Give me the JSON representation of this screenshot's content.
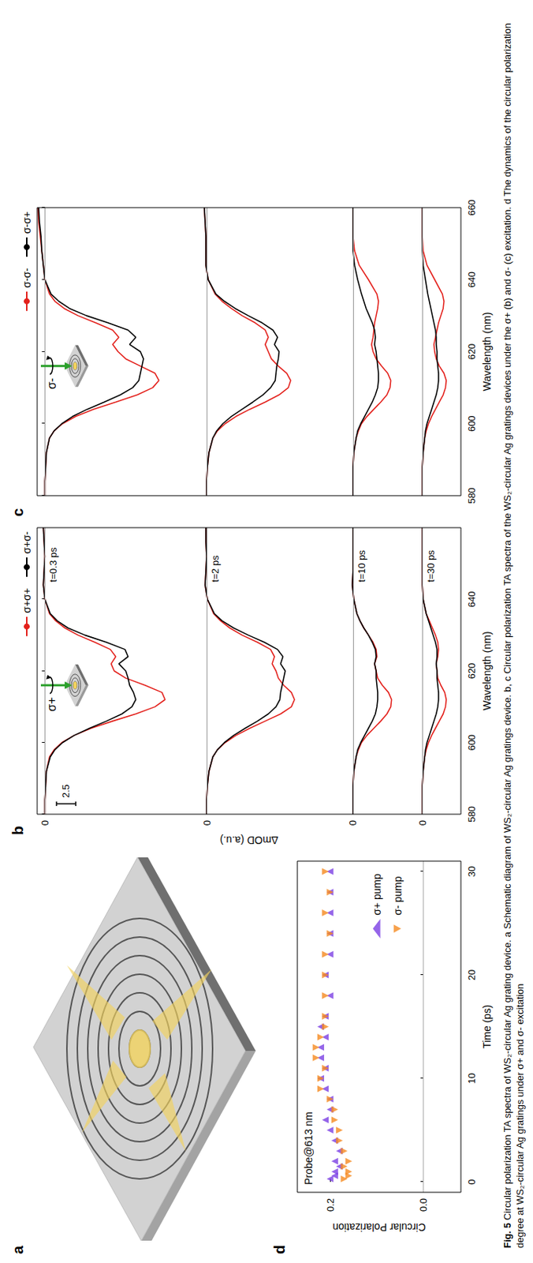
{
  "figure": {
    "caption_label": "Fig. 5",
    "caption": "Circular polarization TA spectra of WS₂-circular Ag grating device. a Schematic diagram of WS₂-circular Ag gratings device. b, c Circular polarization TA spectra of the WS₂-circular Ag gratings devices under the σ+ (b) and σ- (c) excitation. d The dynamics of the circular polarization degree at WS₂-circular Ag gratings under σ+ and σ- excitation",
    "schematic_panel": "a"
  },
  "chart_data": [
    {
      "panel": "b",
      "type": "line",
      "xlabel": "Wavelength (nm)",
      "ylabel": "ΔmOD (a.u.)",
      "x": [
        580,
        584,
        588,
        592,
        596,
        598,
        600,
        602,
        604,
        606,
        608,
        610,
        612,
        614,
        616,
        618,
        620,
        622,
        624,
        626,
        628,
        630,
        632,
        634,
        636,
        640,
        644,
        648,
        652,
        656,
        660
      ],
      "xlim": [
        580,
        660
      ],
      "xticks": [
        580,
        600,
        620,
        640
      ],
      "grid": true,
      "legend": "top",
      "tick_labels": true,
      "inset_label": "σ+",
      "scale_bar": 2.5,
      "traces": [
        {
          "label": "t=0.3 ps",
          "ylim": [
            -54,
            1
          ],
          "yticks": [
            0
          ],
          "series": [
            {
              "name": "σ+σ+",
              "color": "#e3211c",
              "values": [
                0,
                0,
                -0.1,
                -0.2,
                -0.6,
                -1.2,
                -2.2,
                -3.8,
                -6,
                -8.8,
                -11.8,
                -14.3,
                -15.6,
                -15.2,
                -13,
                -10.5,
                -9,
                -8.6,
                -9.2,
                -8.5,
                -6.5,
                -4.3,
                -2.6,
                -1.4,
                -0.6,
                0,
                0.2,
                0.1,
                0,
                0.1,
                0.2
              ]
            },
            {
              "name": "σ+σ-",
              "color": "#000000",
              "values": [
                0,
                0,
                -0.1,
                -0.2,
                -0.7,
                -1.3,
                -2.3,
                -3.8,
                -5.8,
                -8,
                -10,
                -11.3,
                -11.8,
                -11.5,
                -11,
                -10.8,
                -10.5,
                -9.6,
                -10.8,
                -10.4,
                -8,
                -5.2,
                -3,
                -1.6,
                -0.7,
                0,
                0.2,
                0.1,
                0,
                0.1,
                0.2
              ]
            }
          ]
        },
        {
          "label": "t=2 ps",
          "ylim": [
            -33,
            22
          ],
          "yticks": [
            0
          ],
          "series": [
            {
              "name": "σ+σ+",
              "color": "#e3211c",
              "values": [
                0,
                0,
                -0.1,
                -0.3,
                -0.8,
                -1.4,
                -2.4,
                -3.8,
                -5.6,
                -7.6,
                -9.6,
                -11,
                -11.4,
                -11,
                -10,
                -9.3,
                -9,
                -8.5,
                -8.8,
                -8.3,
                -6.6,
                -4.6,
                -3,
                -1.8,
                -0.9,
                -0.1,
                0.2,
                0.1,
                0,
                0.1,
                0.1
              ]
            },
            {
              "name": "σ+σ-",
              "color": "#000000",
              "values": [
                0,
                0,
                -0.1,
                -0.3,
                -0.8,
                -1.4,
                -2.3,
                -3.5,
                -5,
                -6.6,
                -8,
                -9,
                -9.5,
                -9.6,
                -9.8,
                -10,
                -10.2,
                -9.6,
                -9.9,
                -9.2,
                -7.5,
                -5.4,
                -3.5,
                -2,
                -1,
                -0.1,
                0.2,
                0.1,
                0,
                0.1,
                0.1
              ]
            }
          ]
        },
        {
          "label": "t=10 ps",
          "ylim": [
            -14,
            41
          ],
          "yticks": [
            0
          ],
          "series": [
            {
              "name": "σ+σ+",
              "color": "#e3211c",
              "values": [
                0,
                0,
                0,
                -0.1,
                -0.4,
                -0.7,
                -1.1,
                -1.8,
                -2.7,
                -3.6,
                -4.4,
                -4.9,
                -5,
                -4.6,
                -3.8,
                -3.2,
                -3,
                -2.8,
                -3.1,
                -3,
                -2.6,
                -2,
                -1.4,
                -0.9,
                -0.5,
                -0.1,
                0.1,
                0,
                0,
                0,
                0
              ]
            },
            {
              "name": "σ+σ-",
              "color": "#000000",
              "values": [
                0,
                0,
                0,
                -0.1,
                -0.4,
                -0.6,
                -1,
                -1.5,
                -2,
                -2.5,
                -2.9,
                -3.1,
                -3.2,
                -3.2,
                -3.1,
                -3,
                -3,
                -2.8,
                -3,
                -2.9,
                -2.5,
                -2,
                -1.4,
                -0.9,
                -0.5,
                -0.1,
                0.1,
                0,
                0,
                0,
                0
              ]
            }
          ]
        },
        {
          "label": "t=30 ps",
          "ylim": [
            -5,
            50
          ],
          "yticks": [
            0
          ],
          "series": [
            {
              "name": "σ+σ+",
              "color": "#e3211c",
              "values": [
                0,
                0,
                0,
                -0.1,
                -0.3,
                -0.5,
                -0.8,
                -1.2,
                -1.7,
                -2.2,
                -2.7,
                -3,
                -3.1,
                -2.9,
                -2.4,
                -2,
                -1.9,
                -1.8,
                -2,
                -2.1,
                -2,
                -1.7,
                -1.3,
                -0.9,
                -0.5,
                -0.1,
                0,
                0,
                0,
                0,
                0
              ]
            },
            {
              "name": "σ+σ-",
              "color": "#000000",
              "values": [
                0,
                0,
                0,
                -0.1,
                -0.3,
                -0.4,
                -0.6,
                -0.9,
                -1.2,
                -1.5,
                -1.8,
                -2,
                -2.1,
                -2.1,
                -2,
                -1.9,
                -1.9,
                -1.8,
                -1.9,
                -1.9,
                -1.7,
                -1.4,
                -1.1,
                -0.8,
                -0.5,
                -0.1,
                0,
                0,
                0,
                0,
                0
              ]
            }
          ]
        }
      ]
    },
    {
      "panel": "c",
      "type": "line",
      "xlabel": "Wavelength (nm)",
      "x": [
        580,
        584,
        588,
        592,
        596,
        598,
        600,
        602,
        604,
        606,
        608,
        610,
        612,
        614,
        616,
        618,
        620,
        622,
        624,
        626,
        628,
        630,
        632,
        634,
        636,
        640,
        644,
        648,
        652,
        656,
        660
      ],
      "xlim": [
        580,
        660
      ],
      "xticks": [
        580,
        600,
        620,
        640,
        660
      ],
      "grid": true,
      "legend": "top",
      "tick_labels": "x",
      "inset_label": "σ-",
      "traces": [
        {
          "ylim": [
            -54,
            1
          ],
          "yticks": [
            0
          ],
          "series": [
            {
              "name": "σ-σ-",
              "color": "#e3211c",
              "values": [
                0,
                0,
                -0.1,
                -0.2,
                -0.6,
                -1.2,
                -2.3,
                -4,
                -6.3,
                -9.2,
                -12,
                -14,
                -14.8,
                -14.3,
                -12.4,
                -10.5,
                -9.5,
                -8.8,
                -9.6,
                -8.8,
                -6.6,
                -4.3,
                -2.5,
                -1.3,
                -0.6,
                0,
                0.2,
                0.4,
                0.6,
                0.8,
                0.9
              ]
            },
            {
              "name": "σ-σ+",
              "color": "#000000",
              "values": [
                0,
                0,
                -0.1,
                -0.2,
                -0.6,
                -1.2,
                -2.2,
                -3.6,
                -5.5,
                -7.7,
                -9.8,
                -11.4,
                -12.2,
                -12.4,
                -12.6,
                -12.8,
                -12.4,
                -11,
                -11.8,
                -10.8,
                -8.2,
                -5.4,
                -3.2,
                -1.8,
                -0.8,
                0,
                0.2,
                0.4,
                0.5,
                0.7,
                0.8
              ]
            }
          ]
        },
        {
          "ylim": [
            -33,
            22
          ],
          "yticks": [
            0
          ],
          "series": [
            {
              "name": "σ-σ-",
              "color": "#e3211c",
              "values": [
                0,
                0,
                -0.1,
                -0.3,
                -0.8,
                -1.4,
                -2.4,
                -3.8,
                -5.6,
                -7.6,
                -9.4,
                -10.6,
                -10.9,
                -10.4,
                -9.3,
                -8.4,
                -8,
                -7.6,
                -8,
                -7.6,
                -6.3,
                -4.6,
                -3.2,
                -2,
                -1.1,
                -0.2,
                0.1,
                0.1,
                0.1,
                0.2,
                0.3
              ]
            },
            {
              "name": "σ-σ+",
              "color": "#000000",
              "values": [
                0,
                0,
                -0.1,
                -0.3,
                -0.8,
                -1.3,
                -2.1,
                -3.2,
                -4.6,
                -6,
                -7.3,
                -8.3,
                -8.9,
                -9,
                -9.1,
                -9.3,
                -9.4,
                -8.8,
                -9.2,
                -8.6,
                -7.2,
                -5.4,
                -3.7,
                -2.3,
                -1.2,
                -0.2,
                0.1,
                0.1,
                0.1,
                0.2,
                0.3
              ]
            }
          ]
        },
        {
          "ylim": [
            -14,
            41
          ],
          "yticks": [
            0
          ],
          "series": [
            {
              "name": "σ-σ-",
              "color": "#e3211c",
              "values": [
                0,
                0,
                0,
                -0.1,
                -0.4,
                -0.7,
                -1.1,
                -1.8,
                -2.7,
                -3.6,
                -4.4,
                -4.8,
                -4.9,
                -4.5,
                -3.7,
                -3,
                -2.6,
                -2.4,
                -2.6,
                -2.7,
                -2.8,
                -3,
                -3.2,
                -3.3,
                -3.1,
                -2,
                -0.8,
                -0.2,
                0,
                0,
                0
              ]
            },
            {
              "name": "σ-σ+",
              "color": "#000000",
              "values": [
                0,
                0,
                0,
                -0.1,
                -0.4,
                -0.6,
                -1,
                -1.5,
                -2,
                -2.5,
                -2.9,
                -3.2,
                -3.3,
                -3.3,
                -3.2,
                -3.1,
                -3,
                -2.8,
                -2.9,
                -2.8,
                -2.5,
                -2.1,
                -1.7,
                -1.4,
                -1.1,
                -0.6,
                -0.2,
                0,
                0,
                0,
                0
              ]
            }
          ]
        },
        {
          "ylim": [
            -5,
            50
          ],
          "yticks": [
            0
          ],
          "series": [
            {
              "name": "σ-σ-",
              "color": "#e3211c",
              "values": [
                0,
                0,
                0,
                -0.1,
                -0.3,
                -0.5,
                -0.8,
                -1.2,
                -1.7,
                -2.2,
                -2.7,
                -3,
                -3.1,
                -2.8,
                -2.2,
                -1.8,
                -1.6,
                -1.5,
                -1.7,
                -1.9,
                -2.1,
                -2.4,
                -2.7,
                -2.8,
                -2.6,
                -1.6,
                -0.6,
                -0.1,
                0,
                0,
                0
              ]
            },
            {
              "name": "σ-σ+",
              "color": "#000000",
              "values": [
                0,
                0,
                0,
                -0.1,
                -0.3,
                -0.4,
                -0.6,
                -0.9,
                -1.2,
                -1.5,
                -1.8,
                -2,
                -2.1,
                -2.1,
                -2,
                -1.9,
                -1.9,
                -1.8,
                -1.8,
                -1.7,
                -1.5,
                -1.3,
                -1.1,
                -0.9,
                -0.7,
                -0.4,
                -0.1,
                0,
                0,
                0,
                0
              ]
            }
          ]
        }
      ]
    },
    {
      "panel": "d",
      "type": "scatter",
      "xlabel": "Time (ps)",
      "ylabel": "Circular Polarization",
      "annotation": "Probe@613 nm",
      "xlim": [
        -1,
        31
      ],
      "xticks": [
        0,
        10,
        20,
        30
      ],
      "ylim": [
        -0.08,
        0.27
      ],
      "yticks": [
        {
          "value": 0,
          "label": "0.0"
        },
        0.2
      ],
      "hline": 0,
      "grid": false,
      "legend": "lower right",
      "series": [
        {
          "name": "σ+ pump",
          "color": "#7b3fe4",
          "marker": "triangle-up",
          "x": [
            0.3,
            0.6,
            1,
            1.5,
            2,
            3,
            4,
            5,
            6,
            7,
            8,
            9,
            10,
            11,
            12,
            13,
            14,
            15,
            16,
            18,
            20,
            22,
            24,
            26,
            28,
            30
          ],
          "values": [
            0.2,
            0.19,
            0.19,
            0.18,
            0.19,
            0.18,
            0.19,
            0.2,
            0.21,
            0.2,
            0.2,
            0.21,
            0.22,
            0.21,
            0.22,
            0.22,
            0.21,
            0.22,
            0.21,
            0.2,
            0.21,
            0.2,
            0.2,
            0.2,
            0.2,
            0.2
          ]
        },
        {
          "name": "σ- pump",
          "color": "#f5891f",
          "marker": "triangle-down",
          "x": [
            0.3,
            0.6,
            1,
            1.5,
            2,
            3,
            4,
            5,
            6,
            7,
            8,
            9,
            10,
            11,
            12,
            13,
            14,
            15,
            16,
            18,
            20,
            22,
            24,
            26,
            28,
            30
          ],
          "values": [
            0.17,
            0.16,
            0.16,
            0.17,
            0.16,
            0.17,
            0.18,
            0.18,
            0.19,
            0.19,
            0.2,
            0.22,
            0.22,
            0.21,
            0.23,
            0.23,
            0.22,
            0.21,
            0.21,
            0.21,
            0.21,
            0.21,
            0.2,
            0.21,
            0.2,
            0.21
          ]
        }
      ]
    }
  ]
}
